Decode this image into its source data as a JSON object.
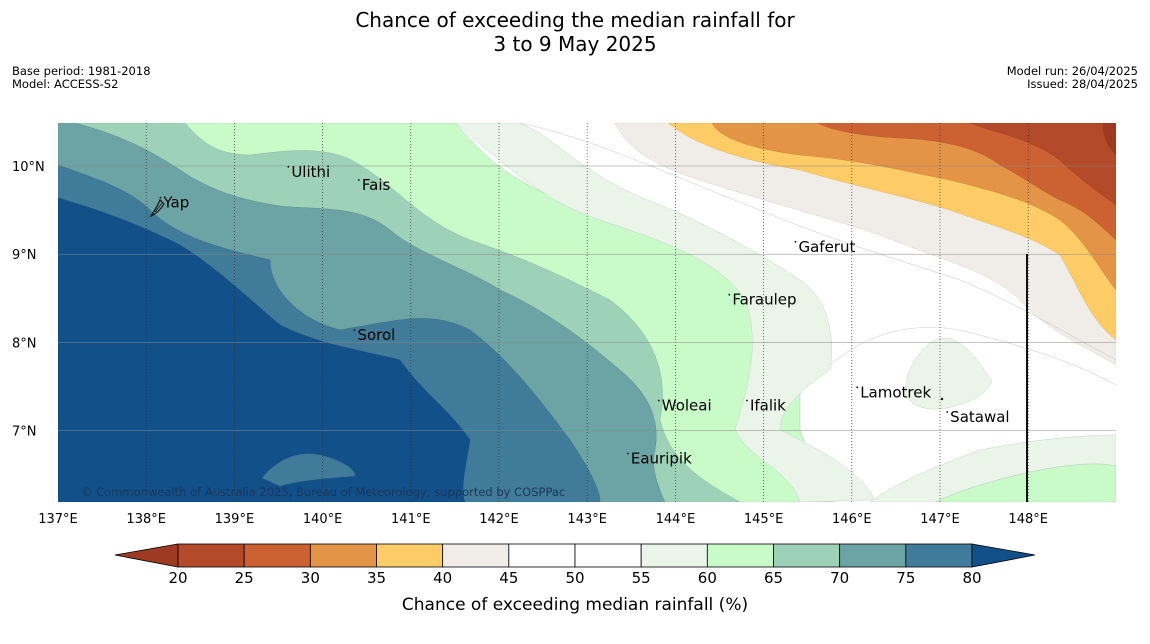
{
  "title_line1": "Chance of exceeding the median rainfall for",
  "title_line2": "3 to 9 May 2025",
  "meta_left": {
    "base_period": "Base period: 1981-2018",
    "model": "Model: ACCESS-S2"
  },
  "meta_right": {
    "model_run": "Model run: 26/04/2025",
    "issued": "Issued: 28/04/2025"
  },
  "map": {
    "lon_range": [
      137,
      149
    ],
    "lat_range": [
      6.2,
      10.5
    ],
    "lon_ticks": [
      {
        "value": 137,
        "label": "137°E"
      },
      {
        "value": 138,
        "label": "138°E"
      },
      {
        "value": 139,
        "label": "139°E"
      },
      {
        "value": 140,
        "label": "140°E"
      },
      {
        "value": 141,
        "label": "141°E"
      },
      {
        "value": 142,
        "label": "142°E"
      },
      {
        "value": 143,
        "label": "143°E"
      },
      {
        "value": 144,
        "label": "144°E"
      },
      {
        "value": 145,
        "label": "145°E"
      },
      {
        "value": 146,
        "label": "146°E"
      },
      {
        "value": 147,
        "label": "147°E"
      },
      {
        "value": 148,
        "label": "148°E"
      }
    ],
    "lat_ticks": [
      {
        "value": 10,
        "label": "10°N"
      },
      {
        "value": 9,
        "label": "9°N"
      },
      {
        "value": 8,
        "label": "8°N"
      },
      {
        "value": 7,
        "label": "7°N"
      }
    ],
    "places": [
      {
        "name": "Yap",
        "lon": 138.15,
        "lat": 9.55
      },
      {
        "name": "Ulithi",
        "lon": 139.6,
        "lat": 9.9
      },
      {
        "name": "Fais",
        "lon": 140.4,
        "lat": 9.75
      },
      {
        "name": "Gaferut",
        "lon": 145.35,
        "lat": 9.05
      },
      {
        "name": "Faraulep",
        "lon": 144.6,
        "lat": 8.45
      },
      {
        "name": "Sorol",
        "lon": 140.35,
        "lat": 8.05
      },
      {
        "name": "Lamotrek",
        "lon": 146.05,
        "lat": 7.4
      },
      {
        "name": "Woleai",
        "lon": 143.8,
        "lat": 7.25
      },
      {
        "name": "Ifalik",
        "lon": 144.8,
        "lat": 7.25
      },
      {
        "name": "Satawal",
        "lon": 147.07,
        "lat": 7.12
      },
      {
        "name": "Eauripik",
        "lon": 143.45,
        "lat": 6.65
      }
    ],
    "copyright": "© Commonwealth of Australia 2025, Bureau of Meteorology, supported by COSPPac"
  },
  "colorbar": {
    "title": "Chance of exceeding median rainfall (%)",
    "under_color": "#9e3a22",
    "over_color": "#12508a",
    "bins": [
      {
        "from": 20,
        "to": 25,
        "color": "#b34a29"
      },
      {
        "from": 25,
        "to": 30,
        "color": "#cc6232"
      },
      {
        "from": 30,
        "to": 35,
        "color": "#e39446"
      },
      {
        "from": 35,
        "to": 40,
        "color": "#fecc66"
      },
      {
        "from": 40,
        "to": 45,
        "color": "#f0ece7"
      },
      {
        "from": 45,
        "to": 50,
        "color": "#ffffff"
      },
      {
        "from": 50,
        "to": 55,
        "color": "#ffffff"
      },
      {
        "from": 55,
        "to": 60,
        "color": "#eaf4e9"
      },
      {
        "from": 60,
        "to": 65,
        "color": "#c9fbc9"
      },
      {
        "from": 65,
        "to": 70,
        "color": "#9ed2b8"
      },
      {
        "from": 70,
        "to": 75,
        "color": "#6ca3a5"
      },
      {
        "from": 75,
        "to": 80,
        "color": "#417b9a"
      }
    ],
    "tick_labels": [
      "20",
      "25",
      "30",
      "35",
      "40",
      "45",
      "50",
      "55",
      "60",
      "65",
      "70",
      "75",
      "80"
    ]
  }
}
